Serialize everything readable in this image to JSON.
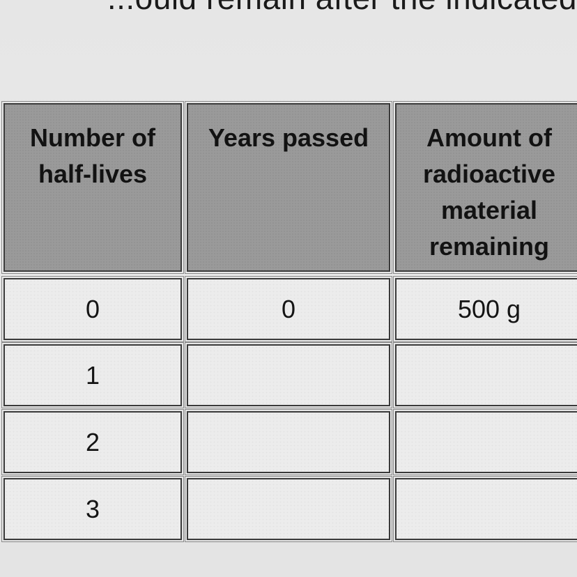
{
  "header_text": "...ould remain after the indicated",
  "table": {
    "headers": [
      [
        "Number of",
        "half-lives"
      ],
      [
        "Years passed"
      ],
      [
        "Amount of",
        "radioactive",
        "material",
        "remaining"
      ]
    ],
    "rows": [
      [
        "0",
        "0",
        "500 g"
      ],
      [
        "1",
        "",
        ""
      ],
      [
        "2",
        "",
        ""
      ],
      [
        "3",
        "",
        ""
      ]
    ]
  }
}
